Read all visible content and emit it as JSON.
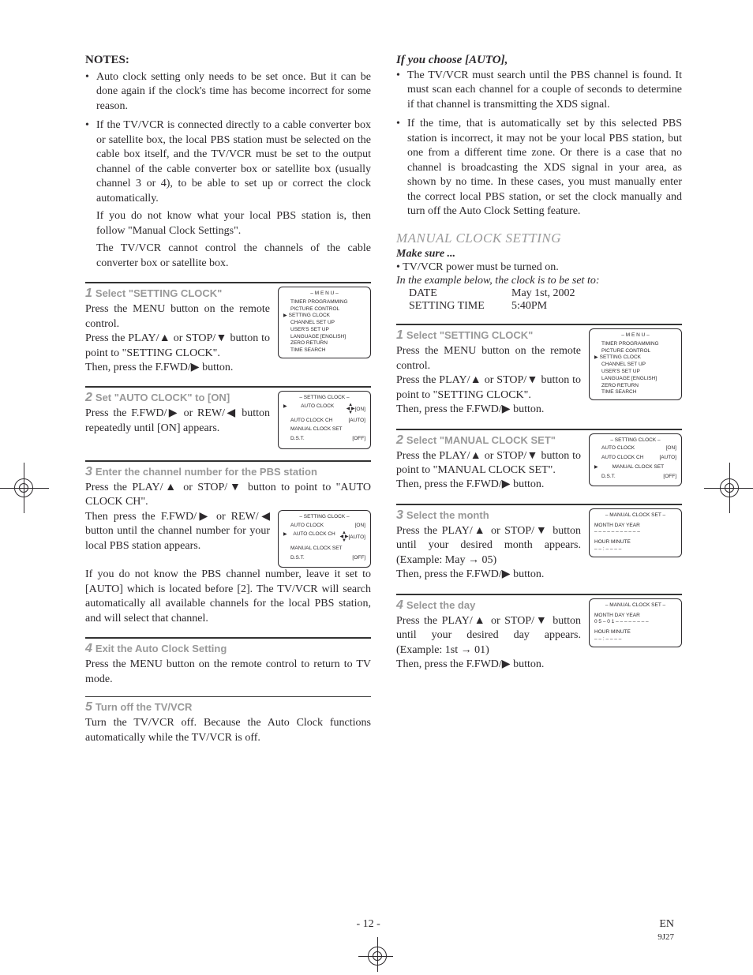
{
  "colors": {
    "text": "#2c292c",
    "muted": "#999999",
    "gray_heading": "#9a9a9a",
    "border": "#333333",
    "bg": "#ffffff"
  },
  "fonts": {
    "body": "Times New Roman",
    "ui": "Arial"
  },
  "left": {
    "notes_heading": "NOTES:",
    "notes": [
      "Auto clock setting only needs to be set once. But it can be done again if the clock's time has become incorrect for some reason.",
      "If the TV/VCR is connected directly to a cable converter box or satellite box, the local PBS station must be selected on the cable box itself, and the TV/VCR must be set to the output channel of the cable converter box or satellite box (usually channel 3 or 4), to be able to set up or correct the clock automatically."
    ],
    "notes_sub": [
      "If you do not know what your local PBS station is, then follow \"Manual Clock Settings\".",
      "The TV/VCR cannot control the channels of the cable converter box or satellite box."
    ],
    "s1": {
      "n": "1",
      "title": "Select \"SETTING CLOCK\"",
      "body1": "Press the MENU button on the remote control.",
      "body2": "Press the PLAY/▲ or STOP/▼ button to point to \"SETTING CLOCK\".",
      "body3": "Then, press the F.FWD/▶ button.",
      "menu": {
        "title": "– M E N U –",
        "items": [
          "TIMER PROGRAMMING",
          "PICTURE CONTROL",
          "SETTING CLOCK",
          "CHANNEL SET UP",
          "USER'S SET UP",
          "LANGUAGE  [ENGLISH]",
          "ZERO RETURN",
          "TIME SEARCH"
        ],
        "pointer_index": 2
      }
    },
    "s2": {
      "n": "2",
      "title": "Set \"AUTO CLOCK\" to [ON]",
      "body": "Press the F.FWD/▶ or REW/◀ button repeatedly until [ON] appears.",
      "menu": {
        "title": "– SETTING CLOCK –",
        "rows": [
          {
            "l": "AUTO CLOCK",
            "r": "[ON]",
            "ptr": true,
            "arrows": true
          },
          {
            "l": "AUTO CLOCK CH",
            "r": "[AUTO]"
          },
          {
            "l": "MANUAL CLOCK SET",
            "r": ""
          },
          {
            "l": "D.S.T.",
            "r": "[OFF]"
          }
        ]
      }
    },
    "s3": {
      "n": "3",
      "title": "Enter the channel number for the PBS station",
      "body1": "Press the PLAY/▲ or STOP/▼ button to point to \"AUTO CLOCK CH\".",
      "body2": "Then press the F.FWD/▶ or REW/◀ button until the channel number for your local PBS station appears.",
      "body3": "If you do not know the PBS channel number, leave it set to [AUTO] which is located before [2]. The TV/VCR will search automatically all available channels for the local PBS station, and will select that channel.",
      "menu": {
        "title": "– SETTING CLOCK –",
        "rows": [
          {
            "l": "AUTO CLOCK",
            "r": "[ON]"
          },
          {
            "l": "AUTO CLOCK CH",
            "r": "[AUTO]",
            "ptr": true,
            "arrows": true
          },
          {
            "l": "MANUAL CLOCK SET",
            "r": ""
          },
          {
            "l": "D.S.T.",
            "r": "[OFF]"
          }
        ]
      }
    },
    "s4": {
      "n": "4",
      "title": "Exit the Auto Clock Setting",
      "body": "Press the MENU button on the remote control to return to TV mode."
    },
    "s5": {
      "n": "5",
      "title": "Turn off the TV/VCR",
      "body": "Turn the TV/VCR off. Because the Auto Clock functions automatically while the TV/VCR is off."
    }
  },
  "right": {
    "auto_heading": "If you choose [AUTO],",
    "auto_bullets": [
      "The TV/VCR must search until the PBS channel is found. It must scan each channel for a couple of seconds to determine if that channel is transmitting the XDS signal.",
      "If the time, that is automatically set by this selected PBS station is incorrect, it may not be your local PBS station, but one from a different time zone. Or there is a case that no channel is broadcasting the XDS signal in your area, as shown by no time. In these cases, you must manually enter the correct local PBS station, or set the clock manually and turn off the Auto Clock Setting feature."
    ],
    "manual_heading": "MANUAL CLOCK SETTING",
    "makesure": "Make sure ...",
    "makesure_item": "TV/VCR power must be turned on.",
    "example_intro": "In the example below, the clock is to be set to:",
    "example": [
      {
        "l": "DATE",
        "r": "May 1st, 2002"
      },
      {
        "l": "SETTING TIME",
        "r": "5:40PM"
      }
    ],
    "s1": {
      "n": "1",
      "title": "Select \"SETTING CLOCK\"",
      "body1": "Press the MENU button on the remote control.",
      "body2": "Press the PLAY/▲ or STOP/▼ button to point to \"SETTING CLOCK\".",
      "body3": "Then, press the F.FWD/▶ button.",
      "menu": {
        "title": "– M E N U –",
        "items": [
          "TIMER PROGRAMMING",
          "PICTURE CONTROL",
          "SETTING CLOCK",
          "CHANNEL SET UP",
          "USER'S SET UP",
          "LANGUAGE  [ENGLISH]",
          "ZERO RETURN",
          "TIME SEARCH"
        ],
        "pointer_index": 2
      }
    },
    "s2": {
      "n": "2",
      "title": "Select \"MANUAL CLOCK SET\"",
      "body1": "Press the PLAY/▲ or STOP/▼ button to point to \"MANUAL CLOCK SET\".",
      "body2": "Then, press the F.FWD/▶ button.",
      "menu": {
        "title": "– SETTING CLOCK –",
        "rows": [
          {
            "l": "AUTO CLOCK",
            "r": "[ON]"
          },
          {
            "l": "AUTO CLOCK CH",
            "r": "[AUTO]"
          },
          {
            "l": "MANUAL CLOCK SET",
            "r": "",
            "ptr": true
          },
          {
            "l": "D.S.T.",
            "r": "[OFF]"
          }
        ]
      }
    },
    "s3": {
      "n": "3",
      "title": "Select the month",
      "body1": "Press the PLAY/▲ or STOP/▼ button until your desired month appears. (Example: May → 05)",
      "body2": "Then, press the F.FWD/▶ button.",
      "clock": {
        "title": "– MANUAL CLOCK SET –",
        "h1": "MONTH  DAY          YEAR",
        "l1": "– –   – –  – – –  – – – –",
        "h2": "HOUR   MINUTE",
        "l2": "– –  :  – –   – –",
        "sel": "month"
      }
    },
    "s4": {
      "n": "4",
      "title": "Select the day",
      "body1": "Press the PLAY/▲ or STOP/▼ button until your desired day appears. (Example: 1st → 01)",
      "body2": "Then, press the F.FWD/▶ button.",
      "clock": {
        "title": "– MANUAL CLOCK SET –",
        "h1": "MONTH  DAY          YEAR",
        "l1": " 0 5  – 0 1 – – – –  – – – –",
        "h2": "HOUR   MINUTE",
        "l2": "– –  :  – –   – –",
        "sel": "day"
      }
    }
  },
  "footer": {
    "page": "- 12 -",
    "lang": "EN",
    "code": "9J27"
  }
}
